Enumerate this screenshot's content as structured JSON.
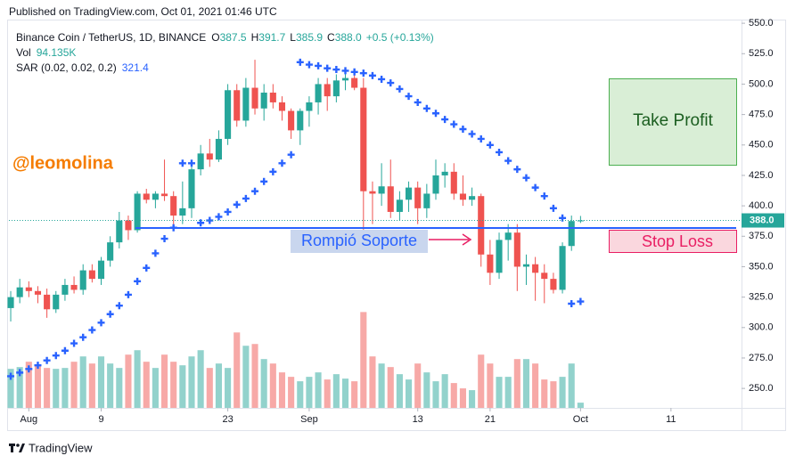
{
  "header": {
    "published": "Published on TradingView.com, Oct 01, 2021 01:46 UTC",
    "brand": "TradingView"
  },
  "chart_data": {
    "type": "candlestick",
    "title": "Binance Coin / TetherUS, 1D, BINANCE",
    "ohlc_labels": [
      "O",
      "H",
      "L",
      "C"
    ],
    "close_label": "388.0",
    "change": "+0.5 (+0.13%)",
    "up_color": "#26a69a",
    "down_color": "#ef5350",
    "open": [
      316,
      325,
      333,
      330,
      327,
      315,
      327,
      335,
      331,
      347,
      340,
      355,
      370,
      388,
      380,
      410,
      405,
      410,
      408,
      392,
      398,
      430,
      443,
      438,
      455,
      495,
      470,
      497,
      480,
      493,
      485,
      478,
      462,
      478,
      485,
      500,
      490,
      503,
      505,
      497,
      412,
      410,
      416,
      395,
      405,
      415,
      398,
      410,
      425,
      428,
      410,
      405,
      408,
      360,
      345,
      372,
      378,
      350,
      352,
      345,
      340,
      331,
      367,
      387.5
    ],
    "high": [
      330,
      340,
      338,
      334,
      332,
      330,
      340,
      342,
      352,
      352,
      358,
      375,
      395,
      392,
      412,
      414,
      412,
      438,
      412,
      420,
      432,
      450,
      455,
      462,
      500,
      500,
      505,
      520,
      500,
      500,
      490,
      480,
      480,
      490,
      505,
      505,
      508,
      509,
      508,
      505,
      420,
      435,
      438,
      412,
      420,
      420,
      418,
      438,
      435,
      435,
      425,
      415,
      410,
      372,
      378,
      385,
      385,
      360,
      358,
      352,
      345,
      370,
      392,
      391.7
    ],
    "low": [
      305,
      320,
      325,
      320,
      308,
      312,
      322,
      328,
      327,
      337,
      335,
      350,
      365,
      372,
      378,
      402,
      398,
      404,
      380,
      385,
      390,
      425,
      432,
      436,
      450,
      465,
      465,
      475,
      470,
      480,
      470,
      455,
      450,
      465,
      475,
      478,
      485,
      495,
      495,
      378,
      385,
      400,
      390,
      388,
      395,
      385,
      390,
      405,
      415,
      405,
      400,
      400,
      350,
      335,
      340,
      355,
      330,
      335,
      322,
      320,
      328,
      328,
      363,
      385.9
    ],
    "close": [
      325,
      333,
      330,
      327,
      315,
      327,
      335,
      331,
      347,
      340,
      355,
      370,
      388,
      380,
      410,
      405,
      410,
      408,
      392,
      398,
      430,
      443,
      438,
      455,
      495,
      470,
      497,
      480,
      493,
      485,
      478,
      462,
      478,
      485,
      500,
      490,
      503,
      505,
      497,
      412,
      410,
      416,
      395,
      405,
      415,
      398,
      410,
      425,
      428,
      410,
      405,
      408,
      360,
      345,
      372,
      378,
      350,
      352,
      345,
      340,
      331,
      367,
      387.5,
      388
    ],
    "volume": {
      "name": "Vol",
      "value_label": "94.135K",
      "axis": "y2",
      "up_color": "#92d2cc",
      "down_color": "#f7a9a7",
      "values": [
        704,
        736,
        832,
        768,
        720,
        704,
        720,
        832,
        928,
        800,
        928,
        800,
        720,
        960,
        1040,
        832,
        720,
        960,
        832,
        768,
        928,
        1040,
        720,
        800,
        720,
        1360,
        1120,
        1152,
        880,
        800,
        640,
        560,
        480,
        560,
        640,
        512,
        608,
        528,
        480,
        1728,
        928,
        800,
        736,
        608,
        512,
        800,
        640,
        480,
        608,
        448,
        352,
        320,
        960,
        800,
        560,
        560,
        880,
        880,
        800,
        512,
        480,
        560,
        800,
        94.135
      ]
    },
    "sar": {
      "name": "SAR (0.02, 0.02, 0.2)",
      "color": "#2962ff",
      "values": [
        260,
        263,
        266,
        269,
        273,
        277,
        281,
        287,
        292,
        298,
        304,
        311,
        318,
        327,
        338,
        349,
        361,
        373,
        382,
        435,
        435,
        386,
        388,
        391,
        395,
        401,
        406,
        412,
        420,
        428,
        435,
        442,
        518,
        516,
        515,
        513,
        512,
        511,
        510,
        509,
        507,
        504,
        501,
        496,
        490,
        485,
        480,
        476,
        471,
        467,
        463,
        459,
        455,
        450,
        444,
        437,
        430,
        423,
        415,
        408,
        398,
        390,
        319.6,
        321.4
      ]
    },
    "xlim": [
      -0.2,
      80.8
    ],
    "xticks": [
      {
        "value": 2,
        "label": "Aug"
      },
      {
        "value": 10,
        "label": "9"
      },
      {
        "value": 24,
        "label": "23"
      },
      {
        "value": 33,
        "label": "Sep"
      },
      {
        "value": 45,
        "label": "13"
      },
      {
        "value": 53,
        "label": "21"
      },
      {
        "value": 63,
        "label": "Oct"
      },
      {
        "value": 73,
        "label": "11"
      }
    ],
    "ylim": [
      234,
      553
    ],
    "yticks": [
      {
        "value": 250,
        "label": "250.0"
      },
      {
        "value": 275,
        "label": "275.0"
      },
      {
        "value": 300,
        "label": "300.0"
      },
      {
        "value": 325,
        "label": "325.0"
      },
      {
        "value": 350,
        "label": "350.0"
      },
      {
        "value": 375,
        "label": "375.0"
      },
      {
        "value": 400,
        "label": "400.0"
      },
      {
        "value": 425,
        "label": "425.0"
      },
      {
        "value": 450,
        "label": "450.0"
      },
      {
        "value": 475,
        "label": "475.0"
      },
      {
        "value": 500,
        "label": "500.0"
      },
      {
        "value": 525,
        "label": "525.0"
      },
      {
        "value": 550,
        "label": "550.0"
      }
    ],
    "y2lim": [
      0,
      7000
    ],
    "grid": false,
    "annotations": {
      "author": "@leomolina",
      "take_profit": "Take Profit",
      "stop_loss": "Stop Loss",
      "support": "Rompió Soporte"
    }
  }
}
